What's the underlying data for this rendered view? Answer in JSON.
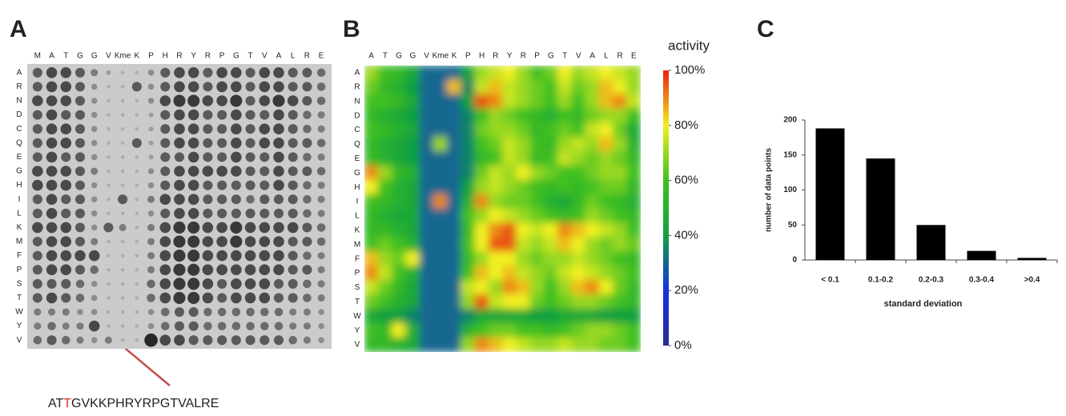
{
  "chart_data": [
    {
      "type": "dot-matrix",
      "label": "A",
      "columns": [
        "M",
        "A",
        "T",
        "G",
        "G",
        "V",
        "Kme",
        "K",
        "P",
        "H",
        "R",
        "Y",
        "R",
        "P",
        "G",
        "T",
        "V",
        "A",
        "L",
        "R",
        "E"
      ],
      "rows": [
        "A",
        "R",
        "N",
        "D",
        "C",
        "Q",
        "E",
        "G",
        "H",
        "I",
        "L",
        "K",
        "M",
        "F",
        "P",
        "S",
        "T",
        "W",
        "Y",
        "V"
      ],
      "zlim": [
        0,
        9
      ],
      "values": [
        [
          6,
          7,
          7,
          6,
          4,
          2,
          1,
          1,
          3,
          6,
          7,
          7,
          6,
          7,
          7,
          6,
          7,
          7,
          6,
          6,
          5
        ],
        [
          6,
          7,
          7,
          6,
          3,
          1,
          1,
          6,
          3,
          6,
          7,
          7,
          6,
          7,
          7,
          6,
          7,
          7,
          6,
          6,
          5
        ],
        [
          7,
          7,
          7,
          6,
          3,
          1,
          1,
          1,
          3,
          7,
          8,
          8,
          7,
          7,
          8,
          6,
          7,
          8,
          7,
          6,
          5
        ],
        [
          6,
          7,
          6,
          6,
          3,
          1,
          1,
          1,
          2,
          6,
          7,
          7,
          6,
          6,
          7,
          6,
          6,
          7,
          6,
          5,
          4
        ],
        [
          6,
          7,
          7,
          6,
          3,
          1,
          1,
          1,
          2,
          6,
          7,
          7,
          6,
          6,
          7,
          6,
          7,
          7,
          6,
          5,
          4
        ],
        [
          6,
          7,
          7,
          6,
          3,
          1,
          1,
          6,
          2,
          6,
          7,
          7,
          6,
          6,
          7,
          6,
          7,
          7,
          6,
          6,
          5
        ],
        [
          6,
          7,
          6,
          6,
          3,
          1,
          1,
          1,
          2,
          6,
          6,
          7,
          6,
          6,
          7,
          6,
          6,
          7,
          6,
          5,
          4
        ],
        [
          7,
          7,
          7,
          6,
          4,
          1,
          1,
          1,
          3,
          6,
          7,
          7,
          7,
          7,
          7,
          6,
          6,
          7,
          6,
          6,
          5
        ],
        [
          7,
          7,
          7,
          6,
          3,
          1,
          1,
          1,
          3,
          6,
          7,
          7,
          6,
          6,
          6,
          6,
          6,
          7,
          6,
          5,
          4
        ],
        [
          6,
          7,
          6,
          6,
          3,
          1,
          6,
          1,
          4,
          7,
          7,
          7,
          6,
          6,
          6,
          5,
          6,
          6,
          6,
          5,
          4
        ],
        [
          6,
          7,
          6,
          6,
          3,
          1,
          1,
          1,
          3,
          6,
          7,
          7,
          6,
          6,
          6,
          6,
          6,
          6,
          6,
          5,
          4
        ],
        [
          7,
          7,
          7,
          6,
          3,
          6,
          4,
          1,
          4,
          7,
          8,
          8,
          7,
          7,
          8,
          7,
          7,
          7,
          7,
          6,
          5
        ],
        [
          6,
          7,
          7,
          6,
          4,
          1,
          1,
          1,
          4,
          7,
          8,
          8,
          7,
          7,
          8,
          7,
          7,
          7,
          6,
          6,
          5
        ],
        [
          6,
          7,
          7,
          7,
          7,
          1,
          1,
          1,
          4,
          7,
          8,
          8,
          7,
          7,
          7,
          7,
          7,
          7,
          6,
          5,
          4
        ],
        [
          6,
          7,
          7,
          6,
          5,
          1,
          1,
          1,
          4,
          7,
          8,
          8,
          7,
          7,
          7,
          7,
          7,
          7,
          6,
          6,
          4
        ],
        [
          6,
          6,
          6,
          5,
          3,
          1,
          1,
          1,
          5,
          7,
          8,
          8,
          7,
          6,
          7,
          7,
          7,
          6,
          6,
          5,
          4
        ],
        [
          6,
          7,
          6,
          5,
          3,
          1,
          1,
          1,
          5,
          7,
          8,
          8,
          7,
          6,
          7,
          7,
          7,
          6,
          6,
          5,
          4
        ],
        [
          4,
          4,
          4,
          3,
          3,
          1,
          1,
          1,
          3,
          5,
          6,
          6,
          5,
          5,
          5,
          5,
          5,
          5,
          4,
          4,
          3
        ],
        [
          4,
          5,
          4,
          4,
          7,
          1,
          1,
          1,
          3,
          5,
          6,
          6,
          5,
          5,
          5,
          5,
          5,
          5,
          4,
          4,
          3
        ],
        [
          5,
          6,
          5,
          4,
          3,
          4,
          1,
          1,
          9,
          7,
          7,
          6,
          6,
          6,
          6,
          6,
          6,
          6,
          5,
          4,
          3
        ]
      ],
      "annotation": {
        "prefix": "AT",
        "highlight": "T",
        "suffix": "GVKKPHRYRPGTVALRE",
        "highlight_color": "#e0302a"
      }
    },
    {
      "type": "heatmap",
      "label": "B",
      "zlabel": "activity",
      "columns": [
        "A",
        "T",
        "G",
        "G",
        "V",
        "Kme",
        "K",
        "P",
        "H",
        "R",
        "Y",
        "R",
        "P",
        "G",
        "T",
        "V",
        "A",
        "L",
        "R",
        "E"
      ],
      "rows": [
        "A",
        "R",
        "N",
        "D",
        "C",
        "Q",
        "E",
        "G",
        "H",
        "I",
        "L",
        "K",
        "M",
        "F",
        "P",
        "S",
        "T",
        "W",
        "Y",
        "V"
      ],
      "colormap": [
        "#2b2b8f",
        "#1530e0",
        "#10a040",
        "#40c020",
        "#f0f020",
        "#e82010"
      ],
      "zlim": [
        0,
        100
      ],
      "zticks": [
        {
          "value": 0,
          "label": "0%"
        },
        {
          "value": 20,
          "label": "20%"
        },
        {
          "value": 40,
          "label": "40%"
        },
        {
          "value": 60,
          "label": "60%"
        },
        {
          "value": 80,
          "label": "80%"
        },
        {
          "value": 100,
          "label": "100%"
        }
      ],
      "values": [
        [
          70,
          60,
          55,
          45,
          30,
          30,
          30,
          40,
          70,
          75,
          80,
          70,
          60,
          65,
          80,
          70,
          75,
          80,
          75,
          70
        ],
        [
          65,
          55,
          50,
          40,
          30,
          30,
          85,
          35,
          75,
          85,
          75,
          70,
          65,
          60,
          75,
          65,
          70,
          85,
          80,
          70
        ],
        [
          60,
          60,
          55,
          45,
          30,
          30,
          30,
          40,
          95,
          90,
          75,
          70,
          65,
          60,
          70,
          60,
          70,
          85,
          90,
          75
        ],
        [
          55,
          50,
          45,
          40,
          30,
          30,
          30,
          35,
          60,
          70,
          65,
          60,
          55,
          50,
          60,
          55,
          65,
          70,
          70,
          60
        ],
        [
          60,
          55,
          50,
          45,
          30,
          30,
          30,
          35,
          65,
          70,
          70,
          65,
          55,
          60,
          65,
          60,
          75,
          80,
          65,
          45
        ],
        [
          55,
          50,
          45,
          40,
          30,
          70,
          30,
          35,
          60,
          65,
          75,
          70,
          60,
          55,
          70,
          75,
          70,
          85,
          70,
          50
        ],
        [
          55,
          50,
          45,
          40,
          30,
          30,
          30,
          35,
          55,
          60,
          75,
          70,
          55,
          60,
          75,
          70,
          65,
          70,
          65,
          55
        ],
        [
          90,
          70,
          55,
          50,
          30,
          30,
          30,
          35,
          65,
          75,
          70,
          80,
          70,
          65,
          60,
          60,
          65,
          70,
          70,
          60
        ],
        [
          80,
          60,
          50,
          45,
          30,
          30,
          30,
          40,
          70,
          75,
          70,
          65,
          60,
          55,
          60,
          55,
          60,
          65,
          65,
          55
        ],
        [
          60,
          55,
          50,
          45,
          30,
          90,
          30,
          50,
          90,
          70,
          65,
          65,
          60,
          50,
          45,
          55,
          65,
          60,
          55,
          50
        ],
        [
          55,
          50,
          45,
          45,
          30,
          30,
          30,
          60,
          70,
          80,
          75,
          70,
          65,
          60,
          55,
          60,
          70,
          65,
          60,
          55
        ],
        [
          55,
          55,
          50,
          45,
          30,
          30,
          30,
          55,
          80,
          90,
          95,
          80,
          75,
          80,
          90,
          85,
          80,
          75,
          70,
          60
        ],
        [
          60,
          65,
          60,
          50,
          30,
          30,
          30,
          60,
          80,
          95,
          95,
          75,
          70,
          75,
          85,
          80,
          70,
          65,
          70,
          65
        ],
        [
          85,
          70,
          65,
          80,
          30,
          30,
          30,
          55,
          70,
          80,
          80,
          70,
          65,
          70,
          70,
          75,
          70,
          65,
          60,
          55
        ],
        [
          90,
          75,
          60,
          50,
          30,
          30,
          30,
          60,
          85,
          80,
          85,
          75,
          70,
          65,
          75,
          80,
          75,
          70,
          65,
          60
        ],
        [
          75,
          65,
          55,
          45,
          30,
          30,
          30,
          75,
          80,
          70,
          90,
          85,
          70,
          60,
          70,
          85,
          90,
          80,
          65,
          55
        ],
        [
          65,
          60,
          50,
          45,
          30,
          30,
          30,
          70,
          95,
          75,
          80,
          80,
          65,
          60,
          65,
          70,
          70,
          65,
          60,
          55
        ],
        [
          45,
          40,
          40,
          35,
          30,
          30,
          30,
          35,
          45,
          45,
          45,
          45,
          40,
          40,
          45,
          45,
          45,
          40,
          40,
          40
        ],
        [
          60,
          55,
          80,
          50,
          30,
          30,
          30,
          50,
          60,
          65,
          65,
          60,
          60,
          55,
          60,
          65,
          70,
          70,
          65,
          60
        ],
        [
          55,
          55,
          50,
          45,
          30,
          30,
          30,
          70,
          90,
          85,
          80,
          75,
          70,
          70,
          75,
          70,
          70,
          65,
          65,
          60
        ]
      ]
    },
    {
      "type": "bar",
      "label": "C",
      "xlabel": "standard deviation",
      "ylabel": "number of data points",
      "categories": [
        "< 0.1",
        "0.1-0.2",
        "0.2-0.3",
        "0.3-0.4",
        ">0.4"
      ],
      "values": [
        188,
        145,
        50,
        13,
        3
      ],
      "color": "#000000",
      "ylim": [
        0,
        200
      ],
      "yticks": [
        0,
        50,
        100,
        150,
        200
      ]
    }
  ]
}
